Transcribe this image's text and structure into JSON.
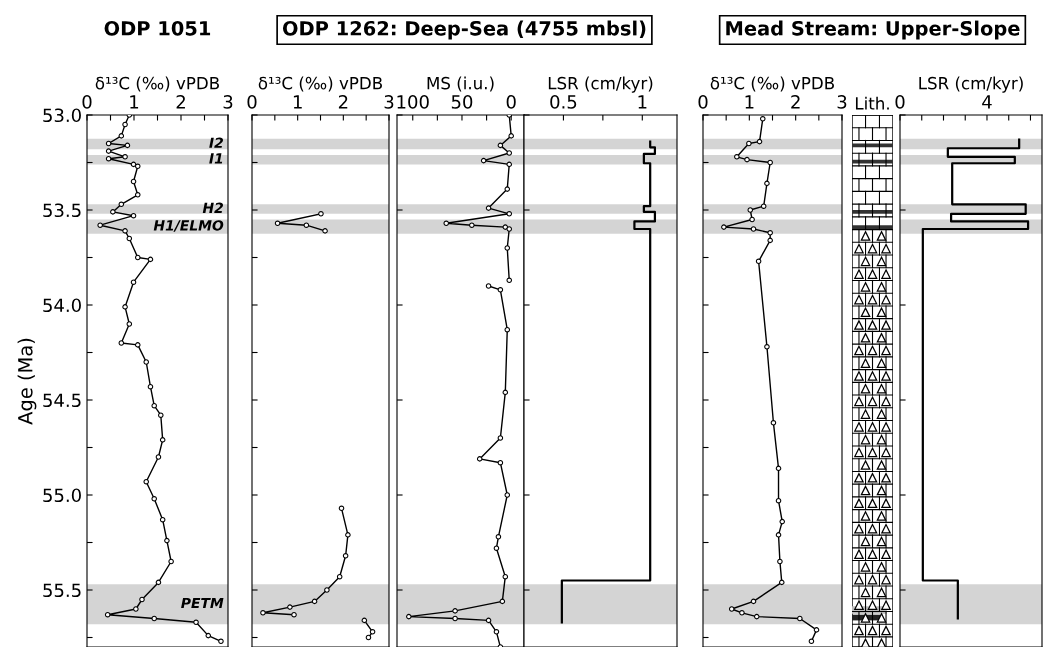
{
  "chart_data": [
    {
      "type": "line",
      "orientation": "horizontal",
      "title": "ODP 1051",
      "xlabel": "δ¹³C (‰) vPDB",
      "ylabel": "Age (Ma)",
      "marker": "circle",
      "xlim": [
        0,
        3
      ],
      "xticks": [
        0,
        {
          "value": 0.5,
          "label": null
        },
        1,
        {
          "value": 1.5,
          "label": null
        },
        2,
        {
          "value": 2.5,
          "label": null
        },
        3
      ],
      "ylim": [
        55.8,
        53.0
      ],
      "yticks": [
        {
          "value": 53.0,
          "label": "53.0"
        },
        {
          "value": 53.25,
          "label": null
        },
        {
          "value": 53.5,
          "label": "53.5"
        },
        {
          "value": 53.75,
          "label": null
        },
        {
          "value": 54.0,
          "label": "54.0"
        },
        {
          "value": 54.25,
          "label": null
        },
        {
          "value": 54.5,
          "label": "54.5"
        },
        {
          "value": 54.75,
          "label": null
        },
        {
          "value": 55.0,
          "label": "55.0"
        },
        {
          "value": 55.25,
          "label": null
        },
        {
          "value": 55.5,
          "label": "55.5"
        },
        {
          "value": 55.75,
          "label": null
        }
      ],
      "bands": [
        {
          "axis": "y",
          "from": 53.125,
          "to": 53.18,
          "label": "I2",
          "color": "#d4d4d4"
        },
        {
          "axis": "y",
          "from": 53.21,
          "to": 53.26,
          "label": "I1",
          "color": "#d4d4d4"
        },
        {
          "axis": "y",
          "from": 53.47,
          "to": 53.52,
          "label": "H2",
          "color": "#d4d4d4"
        },
        {
          "axis": "y",
          "from": 53.55,
          "to": 53.625,
          "label": "H1/ELMO",
          "color": "#d4d4d4"
        },
        {
          "axis": "y",
          "from": 55.47,
          "to": 55.68,
          "label": "PETM",
          "color": "#d4d4d4"
        }
      ],
      "series": [
        {
          "color": "#000000",
          "x": [
            53.0,
            53.05,
            53.11,
            53.15,
            53.16,
            53.19,
            53.22,
            53.23,
            53.26,
            53.27,
            53.35,
            53.42,
            53.47,
            53.51,
            53.53,
            53.58,
            53.61,
            53.65,
            53.75,
            53.76,
            53.88,
            54.01,
            54.1,
            54.2,
            54.21,
            54.3,
            54.43,
            54.53,
            54.58,
            54.71,
            54.8,
            54.93,
            55.02,
            55.13,
            55.24,
            55.35,
            55.46,
            55.55,
            55.6,
            55.63,
            55.65,
            55.67,
            55.74,
            55.77
          ],
          "values": [
            0.9,
            0.81,
            0.73,
            0.46,
            0.86,
            0.46,
            0.81,
            0.46,
            0.99,
            1.08,
            0.99,
            1.08,
            0.73,
            0.55,
            0.99,
            0.28,
            0.81,
            0.9,
            1.08,
            1.35,
            0.99,
            0.81,
            0.9,
            0.73,
            1.08,
            1.26,
            1.35,
            1.43,
            1.57,
            1.61,
            1.52,
            1.26,
            1.43,
            1.61,
            1.7,
            1.79,
            1.52,
            1.17,
            1.04,
            0.44,
            1.43,
            2.32,
            2.58,
            2.85
          ]
        }
      ]
    },
    {
      "type": "line",
      "orientation": "horizontal",
      "title": "ODP 1262: Deep-Sea (4755 mbsl)",
      "xlabel": "δ¹³C (‰) vPDB",
      "marker": "circle",
      "tick_labels": "x",
      "xlim": [
        0,
        3
      ],
      "xticks": [
        0,
        {
          "value": 0.5,
          "label": null
        },
        1,
        {
          "value": 1.5,
          "label": null
        },
        2,
        {
          "value": 2.5,
          "label": null
        },
        3
      ],
      "ylim": [
        55.8,
        53.0
      ],
      "yticks": [
        {
          "value": 53.0,
          "label": null
        },
        {
          "value": 53.25,
          "label": null
        },
        {
          "value": 53.5,
          "label": null
        },
        {
          "value": 53.75,
          "label": null
        },
        {
          "value": 54.0,
          "label": null
        },
        {
          "value": 54.25,
          "label": null
        },
        {
          "value": 54.5,
          "label": null
        },
        {
          "value": 54.75,
          "label": null
        },
        {
          "value": 55.0,
          "label": null
        },
        {
          "value": 55.25,
          "label": null
        },
        {
          "value": 55.5,
          "label": null
        },
        {
          "value": 55.75,
          "label": null
        }
      ],
      "bands": [
        {
          "axis": "y",
          "from": 53.125,
          "to": 53.18,
          "color": "#d4d4d4"
        },
        {
          "axis": "y",
          "from": 53.21,
          "to": 53.26,
          "color": "#d4d4d4"
        },
        {
          "axis": "y",
          "from": 53.47,
          "to": 53.52,
          "color": "#d4d4d4"
        },
        {
          "axis": "y",
          "from": 53.55,
          "to": 53.625,
          "color": "#d4d4d4"
        },
        {
          "axis": "y",
          "from": 55.47,
          "to": 55.68,
          "color": "#d4d4d4"
        }
      ],
      "series": [
        {
          "color": "#000000",
          "x": [
            53.52,
            53.57,
            53.58,
            53.61,
            53.8,
            55.07,
            55.21,
            55.32,
            55.43,
            55.5,
            55.56,
            55.59,
            55.62,
            55.63,
            55.645,
            55.66,
            55.72,
            55.75
          ],
          "values": [
            1.51,
            0.56,
            1.19,
            1.6,
            null,
            1.96,
            2.1,
            2.05,
            1.92,
            1.64,
            1.37,
            0.83,
            0.24,
            0.92,
            null,
            2.46,
            2.64,
            2.55
          ]
        }
      ]
    },
    {
      "type": "line",
      "orientation": "horizontal",
      "xlabel": "MS (i.u.)",
      "marker": "circle",
      "tick_labels": "x",
      "xlim": [
        116,
        -13
      ],
      "xticks": [
        100,
        {
          "value": 75,
          "label": null
        },
        50,
        {
          "value": 25,
          "label": null
        },
        0
      ],
      "ylim": [
        55.8,
        53.0
      ],
      "yticks": [
        {
          "value": 53.0,
          "label": null
        },
        {
          "value": 53.5,
          "label": null
        },
        {
          "value": 54.0,
          "label": null
        },
        {
          "value": 54.5,
          "label": null
        },
        {
          "value": 55.0,
          "label": null
        },
        {
          "value": 55.5,
          "label": null
        }
      ],
      "bands": [
        {
          "axis": "y",
          "from": 53.125,
          "to": 53.18,
          "color": "#d4d4d4"
        },
        {
          "axis": "y",
          "from": 53.21,
          "to": 53.26,
          "color": "#d4d4d4"
        },
        {
          "axis": "y",
          "from": 53.47,
          "to": 53.52,
          "color": "#d4d4d4"
        },
        {
          "axis": "y",
          "from": 53.55,
          "to": 53.625,
          "color": "#d4d4d4"
        },
        {
          "axis": "y",
          "from": 55.47,
          "to": 55.68,
          "color": "#d4d4d4"
        }
      ],
      "series": [
        {
          "color": "#000000",
          "x": [
            53.0,
            53.11,
            53.16,
            53.2,
            53.24,
            53.26,
            53.39,
            53.49,
            53.52,
            53.57,
            53.58,
            53.59,
            53.6,
            53.7,
            53.87,
            53.885,
            53.9,
            53.92,
            54.13,
            54.46,
            54.7,
            54.81,
            54.83,
            55.0,
            55.22,
            55.28,
            55.43,
            55.56,
            55.61,
            55.64,
            55.65,
            55.66,
            55.72,
            55.8
          ],
          "values": [
            2,
            0,
            11,
            2,
            28,
            2,
            4,
            23,
            2,
            66,
            40,
            6,
            2,
            4,
            2,
            null,
            23,
            11,
            4,
            6,
            11,
            32,
            11,
            4,
            13,
            15,
            6,
            9,
            57,
            104,
            57,
            23,
            15,
            11
          ]
        }
      ]
    },
    {
      "type": "step",
      "orientation": "horizontal",
      "xlabel": "LSR (cm/kyr)",
      "tick_labels": "x",
      "xlim": [
        0.25,
        1.22
      ],
      "xticks": [
        0.5,
        {
          "value": 0.75,
          "label": null
        },
        1
      ],
      "ylim": [
        55.8,
        53.0
      ],
      "yticks": [
        {
          "value": 53.0,
          "label": null
        },
        {
          "value": 53.5,
          "label": null
        },
        {
          "value": 54.0,
          "label": null
        },
        {
          "value": 54.5,
          "label": null
        },
        {
          "value": 55.0,
          "label": null
        },
        {
          "value": 55.5,
          "label": null
        }
      ],
      "bands": [
        {
          "axis": "y",
          "from": 53.125,
          "to": 53.18,
          "color": "#d4d4d4"
        },
        {
          "axis": "y",
          "from": 53.21,
          "to": 53.26,
          "color": "#d4d4d4"
        },
        {
          "axis": "y",
          "from": 53.47,
          "to": 53.52,
          "color": "#d4d4d4"
        },
        {
          "axis": "y",
          "from": 53.55,
          "to": 53.625,
          "color": "#d4d4d4"
        },
        {
          "axis": "y",
          "from": 55.47,
          "to": 55.68,
          "color": "#d4d4d4"
        }
      ],
      "series": [
        {
          "color": "#000000",
          "x": [
            53.14,
            53.17,
            53.205,
            53.254,
            53.48,
            53.51,
            53.56,
            53.6,
            55.45,
            55.67
          ],
          "values": [
            1.05,
            1.08,
            1.01,
            1.05,
            1.01,
            1.08,
            0.95,
            1.05,
            0.49,
            0.49
          ]
        }
      ]
    },
    {
      "type": "line",
      "orientation": "horizontal",
      "title": "Mead Stream: Upper-Slope",
      "xlabel": "δ¹³C (‰) vPDB",
      "marker": "circle",
      "tick_labels": "x",
      "xlim": [
        0,
        3
      ],
      "xticks": [
        0,
        {
          "value": 0.5,
          "label": null
        },
        1,
        {
          "value": 1.5,
          "label": null
        },
        2,
        {
          "value": 2.5,
          "label": null
        },
        3
      ],
      "ylim": [
        55.8,
        53.0
      ],
      "yticks": [
        {
          "value": 53.0,
          "label": null
        },
        {
          "value": 53.25,
          "label": null
        },
        {
          "value": 53.5,
          "label": null
        },
        {
          "value": 53.75,
          "label": null
        },
        {
          "value": 54.0,
          "label": null
        },
        {
          "value": 54.25,
          "label": null
        },
        {
          "value": 54.5,
          "label": null
        },
        {
          "value": 54.75,
          "label": null
        },
        {
          "value": 55.0,
          "label": null
        },
        {
          "value": 55.25,
          "label": null
        },
        {
          "value": 55.5,
          "label": null
        },
        {
          "value": 55.75,
          "label": null
        }
      ],
      "bands": [
        {
          "axis": "y",
          "from": 53.125,
          "to": 53.18,
          "color": "#d4d4d4"
        },
        {
          "axis": "y",
          "from": 53.21,
          "to": 53.26,
          "color": "#d4d4d4"
        },
        {
          "axis": "y",
          "from": 53.47,
          "to": 53.52,
          "color": "#d4d4d4"
        },
        {
          "axis": "y",
          "from": 53.55,
          "to": 53.625,
          "color": "#d4d4d4"
        },
        {
          "axis": "y",
          "from": 55.47,
          "to": 55.68,
          "color": "#d4d4d4"
        }
      ],
      "series": [
        {
          "color": "#000000",
          "x": [
            53.02,
            53.14,
            53.15,
            53.22,
            53.235,
            53.25,
            53.36,
            53.48,
            53.5,
            53.55,
            53.59,
            53.6,
            53.62,
            53.66,
            53.77,
            54.22,
            54.62,
            54.86,
            55.03,
            55.14,
            55.21,
            55.35,
            55.46,
            55.56,
            55.6,
            55.62,
            55.64,
            55.65,
            55.71,
            55.77
          ],
          "values": [
            1.29,
            1.22,
            0.99,
            0.73,
            0.95,
            1.45,
            1.38,
            1.31,
            1.02,
            1.06,
            0.45,
            1.09,
            1.45,
            1.45,
            1.2,
            1.38,
            1.52,
            1.63,
            1.63,
            1.71,
            1.63,
            1.66,
            1.7,
            1.09,
            0.62,
            0.84,
            1.16,
            2.09,
            2.45,
            2.34
          ]
        }
      ]
    },
    {
      "type": "other",
      "xlabel": "Lith."
    },
    {
      "type": "step",
      "orientation": "horizontal",
      "xlabel": "LSR (cm/kyr)",
      "tick_labels": "x",
      "xlim": [
        0,
        6.53
      ],
      "xticks": [
        0,
        {
          "value": 1,
          "label": null
        },
        {
          "value": 2,
          "label": null
        },
        {
          "value": 3,
          "label": null
        },
        4,
        {
          "value": 5,
          "label": null
        },
        {
          "value": 6,
          "label": null
        }
      ],
      "ylim": [
        55.8,
        53.0
      ],
      "yticks": [
        {
          "value": 53.0,
          "label": null
        },
        {
          "value": 53.5,
          "label": null
        },
        {
          "value": 54.0,
          "label": null
        },
        {
          "value": 54.5,
          "label": null
        },
        {
          "value": 55.0,
          "label": null
        },
        {
          "value": 55.5,
          "label": null
        }
      ],
      "bands": [
        {
          "axis": "y",
          "from": 53.125,
          "to": 53.18,
          "color": "#d4d4d4"
        },
        {
          "axis": "y",
          "from": 53.21,
          "to": 53.26,
          "color": "#d4d4d4"
        },
        {
          "axis": "y",
          "from": 53.47,
          "to": 53.52,
          "color": "#d4d4d4"
        },
        {
          "axis": "y",
          "from": 53.55,
          "to": 53.625,
          "color": "#d4d4d4"
        },
        {
          "axis": "y",
          "from": 55.47,
          "to": 55.68,
          "color": "#d4d4d4"
        }
      ],
      "series": [
        {
          "color": "#000000",
          "x": [
            53.13,
            53.175,
            53.22,
            53.254,
            53.47,
            53.52,
            53.56,
            53.6,
            55.45,
            55.65
          ],
          "values": [
            5.48,
            2.2,
            5.28,
            2.4,
            5.78,
            2.35,
            5.89,
            1.05,
            2.66,
            2.66
          ]
        }
      ]
    }
  ]
}
